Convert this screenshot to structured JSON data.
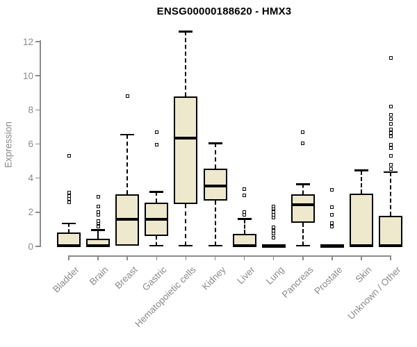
{
  "chart_data": {
    "type": "boxplot",
    "title": "ENSG00000188620 - HMX3",
    "ylabel": "Expression",
    "xlabel": "",
    "ylim": [
      0,
      12.9
    ],
    "yticks": [
      0,
      2,
      4,
      6,
      8,
      10,
      12
    ],
    "grid": false,
    "legend": false,
    "categories": [
      "Bladder",
      "Brain",
      "Breast",
      "Gastric",
      "Hematopoietic cells",
      "Kidney",
      "Liver",
      "Lung",
      "Pancreas",
      "Prostate",
      "Skin",
      "Unknown / Other"
    ],
    "boxes": [
      {
        "category": "Bladder",
        "whisker_low": 0,
        "q1": 0,
        "median": 0.05,
        "q3": 0.8,
        "whisker_high": 1.35,
        "outliers": [
          2.6,
          2.8,
          2.95,
          3.15,
          5.3
        ]
      },
      {
        "category": "Brain",
        "whisker_low": 0,
        "q1": 0,
        "median": 0.05,
        "q3": 0.45,
        "whisker_high": 0.95,
        "outliers": [
          1.15,
          1.35,
          1.5,
          1.85,
          2.0,
          2.35,
          2.9
        ]
      },
      {
        "category": "Breast",
        "whisker_low": 0.05,
        "q1": 0.05,
        "median": 1.6,
        "q3": 3.05,
        "whisker_high": 6.55,
        "outliers": [
          8.8
        ]
      },
      {
        "category": "Gastric",
        "whisker_low": 0.05,
        "q1": 0.6,
        "median": 1.6,
        "q3": 2.55,
        "whisker_high": 3.2,
        "outliers": [
          5.95,
          6.7
        ]
      },
      {
        "category": "Hematopoietic cells",
        "whisker_low": 0.05,
        "q1": 2.5,
        "median": 6.35,
        "q3": 8.8,
        "whisker_high": 12.6,
        "outliers": []
      },
      {
        "category": "Kidney",
        "whisker_low": 0.05,
        "q1": 2.7,
        "median": 3.55,
        "q3": 4.55,
        "whisker_high": 6.05,
        "outliers": []
      },
      {
        "category": "Liver",
        "whisker_low": 0,
        "q1": 0,
        "median": 0.05,
        "q3": 0.75,
        "whisker_high": 1.6,
        "outliers": [
          1.85,
          2.0,
          3.0,
          3.35
        ]
      },
      {
        "category": "Lung",
        "whisker_low": 0,
        "q1": 0,
        "median": 0.04,
        "q3": 0.08,
        "whisker_high": 0.08,
        "outliers": [
          0.5,
          0.75,
          0.9,
          1.1,
          1.7,
          1.85,
          2.0,
          2.2,
          2.35
        ]
      },
      {
        "category": "Pancreas",
        "whisker_low": 0.05,
        "q1": 1.4,
        "median": 2.45,
        "q3": 3.05,
        "whisker_high": 3.65,
        "outliers": [
          6.05,
          6.7
        ]
      },
      {
        "category": "Prostate",
        "whisker_low": 0,
        "q1": 0,
        "median": 0.04,
        "q3": 0.08,
        "whisker_high": 0.08,
        "outliers": [
          1.15,
          1.35,
          1.85,
          2.3,
          3.3
        ]
      },
      {
        "category": "Skin",
        "whisker_low": 0,
        "q1": 0,
        "median": 0.05,
        "q3": 3.1,
        "whisker_high": 4.45,
        "outliers": []
      },
      {
        "category": "Unknown / Other",
        "whisker_low": 0,
        "q1": 0,
        "median": 0.05,
        "q3": 1.8,
        "whisker_high": 4.35,
        "outliers": [
          4.55,
          4.8,
          5.3,
          5.75,
          5.95,
          6.45,
          6.65,
          6.85,
          7.2,
          7.45,
          7.7,
          8.2,
          11.05
        ]
      }
    ],
    "colors": {
      "box_fill": "#eee8cd",
      "box_border": "#000000",
      "median": "#000000",
      "whisker": "#000000",
      "outlier": "#000000",
      "axis": "#8a8a8a",
      "tick_label": "#8a8a8a",
      "title": "#000000"
    }
  }
}
